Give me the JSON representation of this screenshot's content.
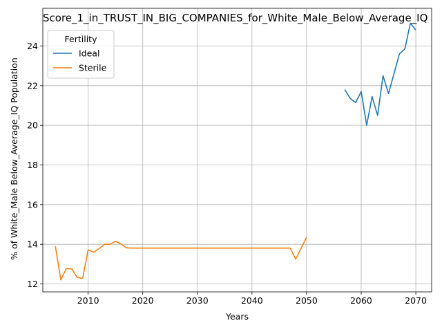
{
  "chart_data": {
    "type": "line",
    "title": "Score_1_in_TRUST_IN_BIG_COMPANIES_for_White_Male_Below_Average_IQ",
    "xlabel": "Years",
    "ylabel": "% of White_Male Below_Average_IQ Population",
    "xlim": [
      2001.7,
      2072.9
    ],
    "ylim": [
      11.6,
      25.9
    ],
    "x_ticks": [
      2010,
      2020,
      2030,
      2040,
      2050,
      2060,
      2070
    ],
    "y_ticks": [
      12,
      14,
      16,
      18,
      20,
      22,
      24
    ],
    "grid": true,
    "legend": {
      "title": "Fertility",
      "placement": "top-left"
    },
    "series": [
      {
        "name": "Ideal",
        "color": "#1f77b4",
        "x": [
          2057,
          2058,
          2059,
          2060,
          2061,
          2062,
          2063,
          2064,
          2065,
          2066,
          2067,
          2068,
          2069,
          2070
        ],
        "y": [
          21.8,
          21.35,
          21.15,
          21.7,
          20.0,
          21.45,
          20.5,
          22.5,
          21.6,
          22.6,
          23.6,
          23.85,
          25.15,
          24.8
        ]
      },
      {
        "name": "Sterile",
        "color": "#ff7f0e",
        "x": [
          2004,
          2005,
          2006,
          2007,
          2008,
          2009,
          2010,
          2011,
          2012,
          2013,
          2014,
          2015,
          2016,
          2017,
          2018,
          2020,
          2025,
          2030,
          2035,
          2040,
          2045,
          2047,
          2048,
          2049,
          2050
        ],
        "y": [
          13.9,
          12.2,
          12.78,
          12.76,
          12.33,
          12.28,
          13.72,
          13.6,
          13.78,
          14.0,
          14.0,
          14.15,
          14.02,
          13.82,
          13.81,
          13.81,
          13.81,
          13.81,
          13.81,
          13.81,
          13.81,
          13.81,
          13.25,
          13.8,
          14.35
        ]
      }
    ]
  }
}
